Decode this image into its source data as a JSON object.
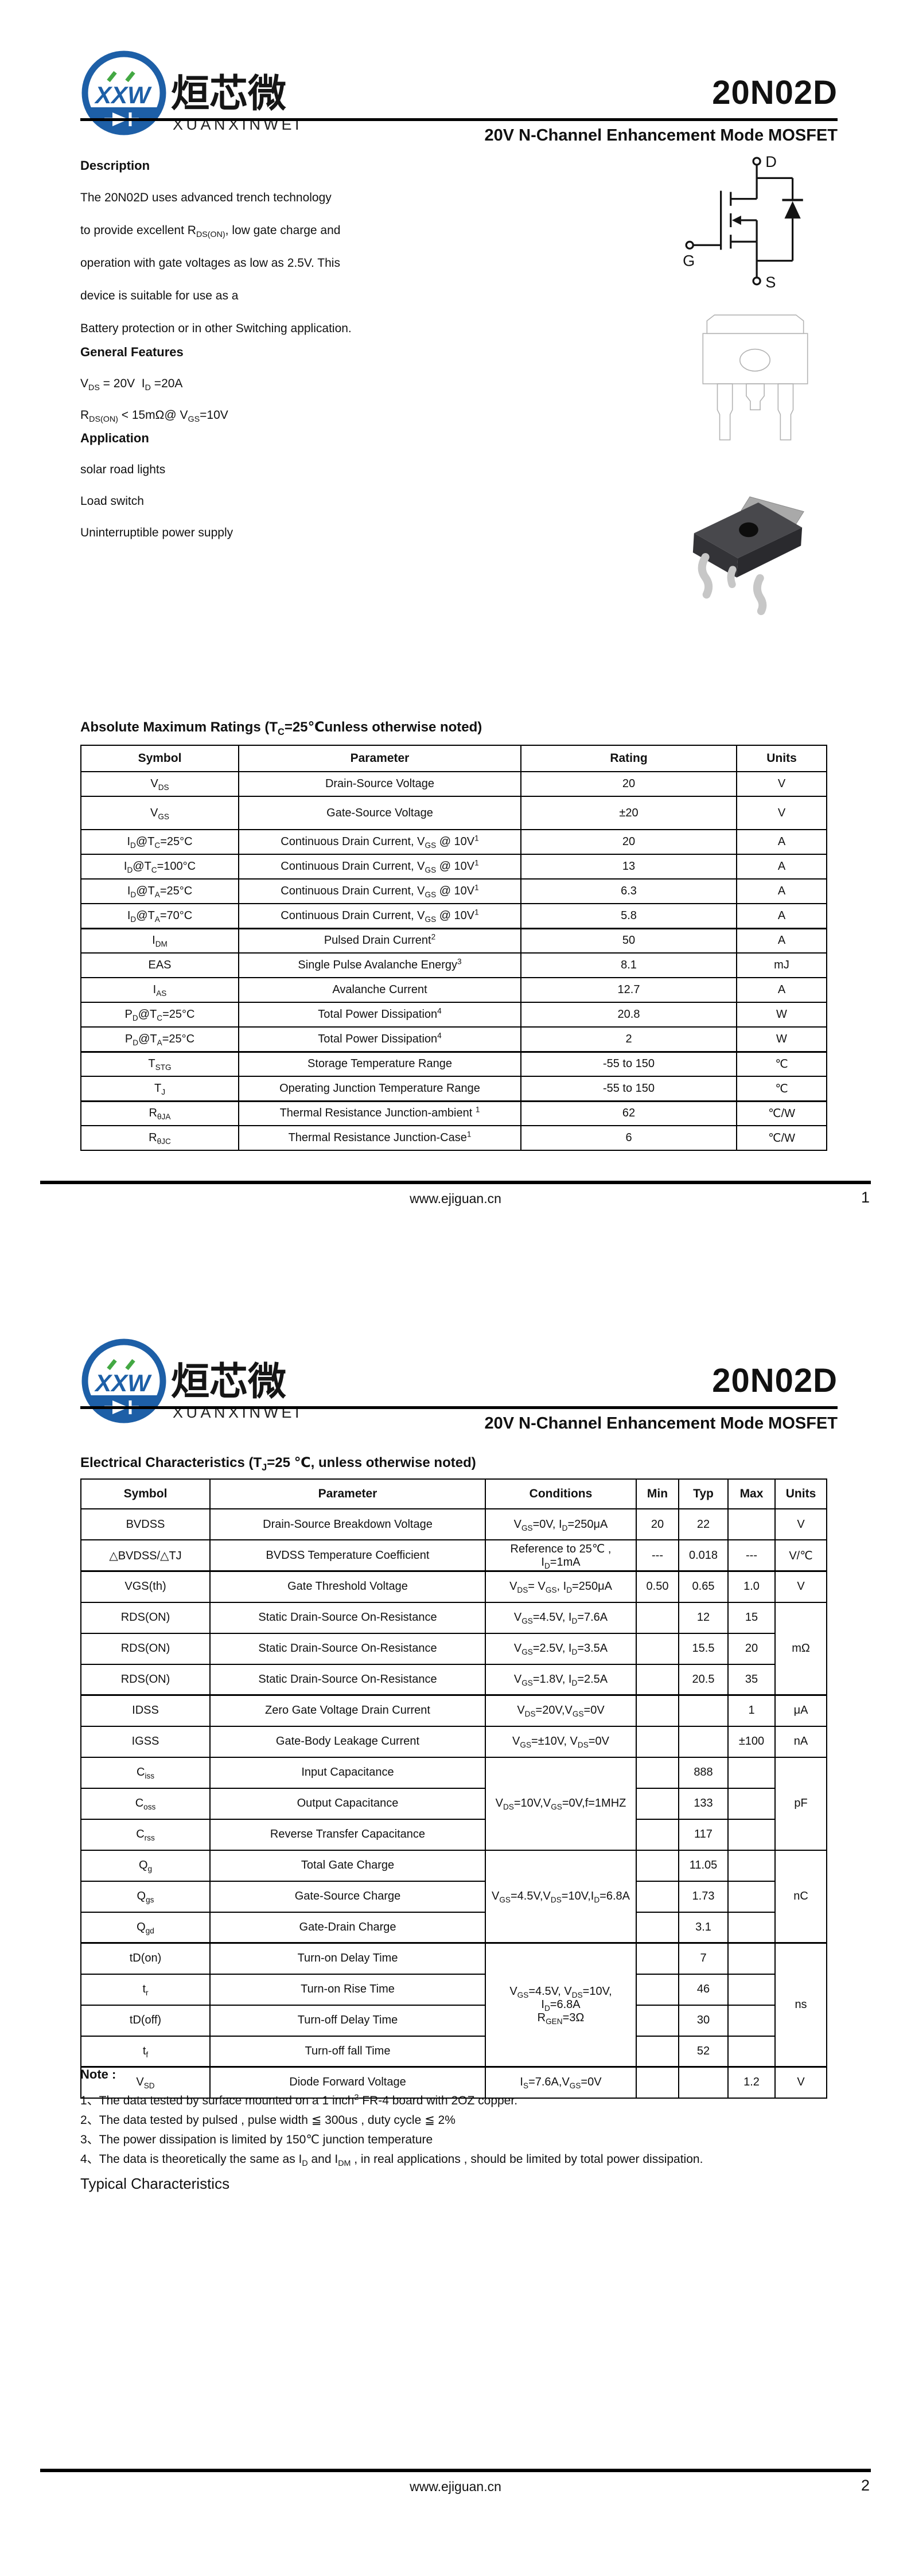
{
  "brand": {
    "monogram": "XXW",
    "name_cn": "烜芯微",
    "name_en": "XUANXINWEI"
  },
  "doc": {
    "part_number": "20N02D",
    "subtitle": "20V N-Channel Enhancement Mode MOSFET",
    "website": "www.ejiguan.cn"
  },
  "page1": {
    "page_number": "1",
    "description_title": "Description",
    "description_lines": [
      "The 20N02D uses advanced trench technology",
      "to provide excellent R<sub>DS(ON)</sub>, low gate charge and",
      "operation with gate voltages as low as 2.5V. This",
      "device is suitable for use as a",
      "Battery protection or in other Switching application."
    ],
    "features_title": "General Features",
    "features_lines": [
      "V<sub>DS</sub> = 20V&nbsp;&nbsp;I<sub>D</sub> =20A",
      "R<sub>DS(ON)</sub> &lt; 15mΩ@ V<sub>GS</sub>=10V"
    ],
    "application_title": "Application",
    "application_items": [
      "solar road lights",
      "Load switch",
      "Uninterruptible power supply"
    ],
    "schematic": {
      "drain": "D",
      "gate": "G",
      "source": "S"
    },
    "abs_title": "Absolute Maximum Ratings (T<sub>C</sub>=25℃unless otherwise noted)",
    "abs_table": {
      "headers": [
        "Symbol",
        "Parameter",
        "Rating",
        "Units"
      ],
      "rows": [
        [
          {
            "h": "V<sub>DS</sub>"
          },
          {
            "h": "Drain-Source Voltage"
          },
          {
            "h": "20"
          },
          {
            "h": "V"
          }
        ],
        [
          {
            "h": "V<sub>GS</sub>"
          },
          {
            "h": "Gate-Source Voltage"
          },
          {
            "h": "±20"
          },
          {
            "h": "V"
          }
        ],
        [
          {
            "h": "I<sub>D</sub>@T<sub>C</sub>=25°C"
          },
          {
            "h": "Continuous Drain Current, V<sub>GS</sub> @ 10V<sup>1</sup>"
          },
          {
            "h": "20"
          },
          {
            "h": "A"
          }
        ],
        [
          {
            "h": "I<sub>D</sub>@T<sub>C</sub>=100°C"
          },
          {
            "h": "Continuous Drain Current, V<sub>GS</sub> @ 10V<sup>1</sup>"
          },
          {
            "h": "13"
          },
          {
            "h": "A"
          }
        ],
        [
          {
            "h": "I<sub>D</sub>@T<sub>A</sub>=25°C"
          },
          {
            "h": "Continuous Drain Current, V<sub>GS</sub> @ 10V<sup>1</sup>"
          },
          {
            "h": "6.3"
          },
          {
            "h": "A"
          }
        ],
        [
          {
            "h": "I<sub>D</sub>@T<sub>A</sub>=70°C"
          },
          {
            "h": "Continuous Drain Current, V<sub>GS</sub> @ 10V<sup>1</sup>"
          },
          {
            "h": "5.8"
          },
          {
            "h": "A"
          }
        ],
        [
          {
            "h": "I<sub>DM</sub>"
          },
          {
            "h": "Pulsed Drain Current<sup>2</sup>"
          },
          {
            "h": "50"
          },
          {
            "h": "A"
          }
        ],
        [
          {
            "h": "EAS"
          },
          {
            "h": "Single Pulse Avalanche Energy<sup>3</sup>"
          },
          {
            "h": "8.1"
          },
          {
            "h": "mJ"
          }
        ],
        [
          {
            "h": "I<sub>AS</sub>"
          },
          {
            "h": "Avalanche Current"
          },
          {
            "h": "12.7"
          },
          {
            "h": "A"
          }
        ],
        [
          {
            "h": "P<sub>D</sub>@T<sub>C</sub>=25°C"
          },
          {
            "h": "Total Power Dissipation<sup>4</sup>"
          },
          {
            "h": "20.8"
          },
          {
            "h": "W"
          }
        ],
        [
          {
            "h": "P<sub>D</sub>@T<sub>A</sub>=25°C"
          },
          {
            "h": "Total Power Dissipation<sup>4</sup>"
          },
          {
            "h": "2"
          },
          {
            "h": "W"
          }
        ],
        [
          {
            "h": "T<sub>STG</sub>"
          },
          {
            "h": "Storage Temperature Range"
          },
          {
            "h": "-55 to 150"
          },
          {
            "h": "℃"
          }
        ],
        [
          {
            "h": "T<sub>J</sub>"
          },
          {
            "h": "Operating Junction Temperature Range"
          },
          {
            "h": "-55 to 150"
          },
          {
            "h": "℃"
          }
        ],
        [
          {
            "h": "R<sub>θJA</sub>"
          },
          {
            "h": "Thermal Resistance Junction-ambient <sup>1</sup>"
          },
          {
            "h": "62"
          },
          {
            "h": "℃/W"
          }
        ],
        [
          {
            "h": "R<sub>θJC</sub>"
          },
          {
            "h": "Thermal Resistance Junction-Case<sup>1</sup>"
          },
          {
            "h": "6"
          },
          {
            "h": "℃/W"
          }
        ]
      ]
    }
  },
  "page2": {
    "page_number": "2",
    "ec_title": "Electrical Characteristics (T<sub>J</sub>=25 ℃, unless otherwise noted)",
    "ec_table": {
      "headers": [
        "Symbol",
        "Parameter",
        "Conditions",
        "Min",
        "Typ",
        "Max",
        "Units"
      ],
      "rows": [
        [
          {
            "h": "BVDSS"
          },
          {
            "h": "Drain-Source Breakdown Voltage"
          },
          {
            "h": "V<sub>GS</sub>=0V, I<sub>D</sub>=250μA"
          },
          {
            "h": "20"
          },
          {
            "h": "22"
          },
          {
            "h": ""
          },
          {
            "h": "V"
          }
        ],
        [
          {
            "h": "△BVDSS/△TJ"
          },
          {
            "h": "BVDSS Temperature Coefficient"
          },
          {
            "h": "Reference to 25℃ , I<sub>D</sub>=1mA"
          },
          {
            "h": "---"
          },
          {
            "h": "0.018"
          },
          {
            "h": "---"
          },
          {
            "h": "V/℃"
          }
        ],
        [
          {
            "h": "VGS(th)"
          },
          {
            "h": "Gate Threshold Voltage"
          },
          {
            "h": "V<sub>DS</sub>= V<sub>GS</sub>, I<sub>D</sub>=250μA"
          },
          {
            "h": "0.50"
          },
          {
            "h": "0.65"
          },
          {
            "h": "1.0"
          },
          {
            "h": "V"
          }
        ],
        [
          {
            "h": "RDS(ON)"
          },
          {
            "h": "Static Drain-Source On-Resistance"
          },
          {
            "h": "V<sub>GS</sub>=4.5V, I<sub>D</sub>=7.6A"
          },
          {
            "h": ""
          },
          {
            "h": "12"
          },
          {
            "h": "15"
          },
          {
            "h": "mΩ",
            "rs": 3
          }
        ],
        [
          {
            "h": "RDS(ON)"
          },
          {
            "h": "Static Drain-Source On-Resistance"
          },
          {
            "h": "V<sub>GS</sub>=2.5V, I<sub>D</sub>=3.5A"
          },
          {
            "h": ""
          },
          {
            "h": "15.5"
          },
          {
            "h": "20"
          }
        ],
        [
          {
            "h": "RDS(ON)"
          },
          {
            "h": "Static Drain-Source On-Resistance"
          },
          {
            "h": "V<sub>GS</sub>=1.8V, I<sub>D</sub>=2.5A"
          },
          {
            "h": ""
          },
          {
            "h": "20.5"
          },
          {
            "h": "35"
          }
        ],
        [
          {
            "h": "IDSS"
          },
          {
            "h": "Zero Gate Voltage Drain Current"
          },
          {
            "h": "V<sub>DS</sub>=20V,V<sub>GS</sub>=0V"
          },
          {
            "h": ""
          },
          {
            "h": ""
          },
          {
            "h": "1"
          },
          {
            "h": "μA"
          }
        ],
        [
          {
            "h": "IGSS"
          },
          {
            "h": "Gate-Body Leakage Current"
          },
          {
            "h": "V<sub>GS</sub>=±10V, V<sub>DS</sub>=0V"
          },
          {
            "h": ""
          },
          {
            "h": ""
          },
          {
            "h": "±100"
          },
          {
            "h": "nA"
          }
        ],
        [
          {
            "h": "C<sub>iss</sub>"
          },
          {
            "h": "Input Capacitance"
          },
          {
            "h": "V<sub>DS</sub>=10V,V<sub>GS</sub>=0V,f=1MHZ",
            "rs": 3
          },
          {
            "h": ""
          },
          {
            "h": "888"
          },
          {
            "h": ""
          },
          {
            "h": "pF",
            "rs": 3
          }
        ],
        [
          {
            "h": "C<sub>oss</sub>"
          },
          {
            "h": "Output Capacitance"
          },
          {
            "h": ""
          },
          {
            "h": "133"
          },
          {
            "h": ""
          }
        ],
        [
          {
            "h": "C<sub>rss</sub>"
          },
          {
            "h": "Reverse Transfer Capacitance"
          },
          {
            "h": ""
          },
          {
            "h": "117"
          },
          {
            "h": ""
          }
        ],
        [
          {
            "h": "Q<sub>g</sub>"
          },
          {
            "h": "Total Gate Charge"
          },
          {
            "h": "V<sub>GS</sub>=4.5V,V<sub>DS</sub>=10V,I<sub>D</sub>=6.8A",
            "rs": 3
          },
          {
            "h": ""
          },
          {
            "h": "11.05"
          },
          {
            "h": ""
          },
          {
            "h": "nC",
            "rs": 3
          }
        ],
        [
          {
            "h": "Q<sub>gs</sub>"
          },
          {
            "h": "Gate-Source Charge"
          },
          {
            "h": ""
          },
          {
            "h": "1.73"
          },
          {
            "h": ""
          }
        ],
        [
          {
            "h": "Q<sub>gd</sub>"
          },
          {
            "h": "Gate-Drain Charge"
          },
          {
            "h": ""
          },
          {
            "h": "3.1"
          },
          {
            "h": ""
          }
        ],
        [
          {
            "h": "tD(on)"
          },
          {
            "h": "Turn-on Delay Time"
          },
          {
            "h": "V<sub>GS</sub>=4.5V, V<sub>DS</sub>=10V,<br>I<sub>D</sub>=6.8A<br>R<sub>GEN</sub>=3Ω",
            "rs": 4
          },
          {
            "h": ""
          },
          {
            "h": "7"
          },
          {
            "h": ""
          },
          {
            "h": "ns",
            "rs": 4
          }
        ],
        [
          {
            "h": "t<sub>r</sub>"
          },
          {
            "h": "Turn-on Rise Time"
          },
          {
            "h": ""
          },
          {
            "h": "46"
          },
          {
            "h": ""
          }
        ],
        [
          {
            "h": "tD(off)"
          },
          {
            "h": "Turn-off Delay Time"
          },
          {
            "h": ""
          },
          {
            "h": "30"
          },
          {
            "h": ""
          }
        ],
        [
          {
            "h": "t<sub>f</sub>"
          },
          {
            "h": "Turn-off fall Time"
          },
          {
            "h": ""
          },
          {
            "h": "52"
          },
          {
            "h": ""
          }
        ],
        [
          {
            "h": "V<sub>SD</sub>"
          },
          {
            "h": "Diode Forward Voltage"
          },
          {
            "h": "I<sub>S</sub>=7.6A,V<sub>GS</sub>=0V"
          },
          {
            "h": ""
          },
          {
            "h": ""
          },
          {
            "h": "1.2"
          },
          {
            "h": "V"
          }
        ]
      ]
    },
    "note_title": "Note :",
    "notes": [
      "1、The data tested by surface mounted on a 1 inch<sup>2</sup> FR-4 board with 2OZ copper.",
      "2、The data tested by pulsed , pulse width ≦ 300us , duty cycle ≦ 2%",
      "3、The power dissipation is limited by 150℃ junction temperature",
      "4、The data is theoretically the same as I<sub>D</sub> and I<sub>DM</sub> , in real applications , should be limited by total power dissipation."
    ],
    "typical_title": "Typical Characteristics"
  }
}
